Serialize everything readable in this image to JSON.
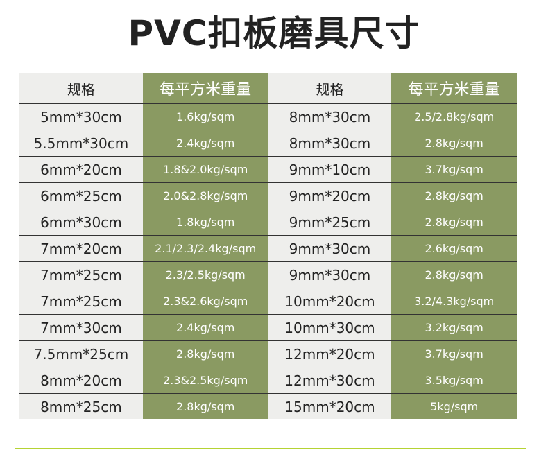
{
  "title": "PVC扣板磨具尺寸",
  "headers": [
    "规格",
    "每平方米重量",
    "规格",
    "每平方米重量"
  ],
  "rows": [
    [
      "5mm*30cm",
      "1.6kg/sqm",
      "8mm*30cm",
      "2.5/2.8kg/sqm"
    ],
    [
      "5.5mm*30cm",
      "2.4kg/sqm",
      "8mm*30cm",
      "2.8kg/sqm"
    ],
    [
      "6mm*20cm",
      "1.8&2.0kg/sqm",
      "9mm*10cm",
      "3.7kg/sqm"
    ],
    [
      "6mm*25cm",
      "2.0&2.8kg/sqm",
      "9mm*20cm",
      "2.8kg/sqm"
    ],
    [
      "6mm*30cm",
      "1.8kg/sqm",
      "9mm*25cm",
      "2.8kg/sqm"
    ],
    [
      "7mm*20cm",
      "2.1/2.3/2.4kg/sqm",
      "9mm*30cm",
      "2.6kg/sqm"
    ],
    [
      "7mm*25cm",
      "2.3/2.5kg/sqm",
      "9mm*30cm",
      "2.8kg/sqm"
    ],
    [
      "7mm*25cm",
      "2.3&2.6kg/sqm",
      "10mm*20cm",
      "3.2/4.3kg/sqm"
    ],
    [
      "7mm*30cm",
      "2.4kg/sqm",
      "10mm*30cm",
      "3.2kg/sqm"
    ],
    [
      "7.5mm*25cm",
      "2.8kg/sqm",
      "12mm*20cm",
      "3.7kg/sqm"
    ],
    [
      "8mm*20cm",
      "2.3&2.5kg/sqm",
      "12mm*30cm",
      "3.5kg/sqm"
    ],
    [
      "8mm*25cm",
      "2.8kg/sqm",
      "15mm*20cm",
      "5kg/sqm"
    ]
  ],
  "colors": {
    "accent": "#8a9a62",
    "cell": "#eeeeec",
    "rule": "#b5d334"
  }
}
